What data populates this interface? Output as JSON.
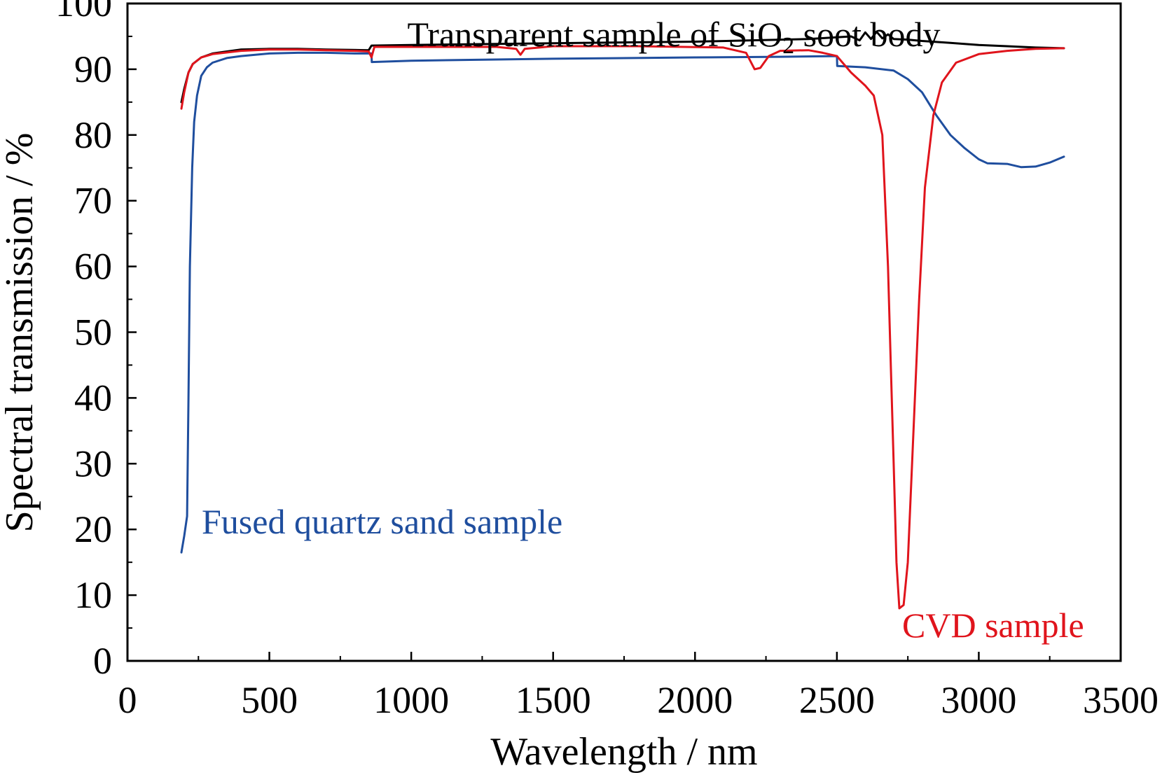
{
  "chart_data": {
    "type": "line",
    "xlabel": "Wavelength / nm",
    "ylabel": "Spectral transmission / %",
    "xlim": [
      0,
      3500
    ],
    "ylim": [
      0,
      100
    ],
    "x_ticks": [
      0,
      500,
      1000,
      1500,
      2000,
      2500,
      3000,
      3500
    ],
    "x_tick_labels": [
      "0",
      "500",
      "1000",
      "1500",
      "2000",
      "2500",
      "3000",
      "3500"
    ],
    "y_ticks": [
      0,
      10,
      20,
      30,
      40,
      50,
      60,
      70,
      80,
      90,
      100
    ],
    "y_tick_labels": [
      "0",
      "10",
      "20",
      "30",
      "40",
      "50",
      "60",
      "70",
      "80",
      "90",
      "100"
    ],
    "grid": false,
    "annotations": {
      "transparent": {
        "text": "Transparent sample of SiO",
        "subscript": "2",
        "suffix": " soot body",
        "color": "#000000"
      },
      "fused": {
        "text": "Fused quartz sand sample",
        "color": "#1f4e9e"
      },
      "cvd": {
        "text": "CVD sample",
        "color": "#e0141c"
      }
    },
    "series": [
      {
        "key": "transparent",
        "color": "#000000",
        "points": [
          [
            190,
            85
          ],
          [
            200,
            87
          ],
          [
            215,
            89.5
          ],
          [
            230,
            90.8
          ],
          [
            260,
            91.8
          ],
          [
            300,
            92.4
          ],
          [
            400,
            93
          ],
          [
            500,
            93.1
          ],
          [
            600,
            93.1
          ],
          [
            700,
            93
          ],
          [
            850,
            92.9
          ],
          [
            860,
            93.6
          ],
          [
            1000,
            93.7
          ],
          [
            1200,
            93.8
          ],
          [
            1400,
            93.9
          ],
          [
            1600,
            94
          ],
          [
            1800,
            94.1
          ],
          [
            2000,
            94.2
          ],
          [
            2200,
            94.4
          ],
          [
            2400,
            94.6
          ],
          [
            2550,
            95
          ],
          [
            2580,
            94.4
          ],
          [
            2600,
            95.6
          ],
          [
            2620,
            94.6
          ],
          [
            2640,
            95.7
          ],
          [
            2660,
            94.7
          ],
          [
            2680,
            95.3
          ],
          [
            2700,
            94.6
          ],
          [
            2750,
            94.5
          ],
          [
            2800,
            94.3
          ],
          [
            2900,
            94
          ],
          [
            3000,
            93.7
          ],
          [
            3100,
            93.5
          ],
          [
            3200,
            93.3
          ],
          [
            3300,
            93.2
          ]
        ]
      },
      {
        "key": "fused",
        "color": "#1f4e9e",
        "points": [
          [
            190,
            16.5
          ],
          [
            200,
            19
          ],
          [
            210,
            22
          ],
          [
            215,
            40
          ],
          [
            220,
            60
          ],
          [
            228,
            75
          ],
          [
            235,
            82
          ],
          [
            245,
            86
          ],
          [
            260,
            89
          ],
          [
            280,
            90.3
          ],
          [
            300,
            91
          ],
          [
            350,
            91.7
          ],
          [
            400,
            92
          ],
          [
            500,
            92.4
          ],
          [
            600,
            92.5
          ],
          [
            700,
            92.5
          ],
          [
            800,
            92.4
          ],
          [
            860,
            92.4
          ],
          [
            861,
            91.1
          ],
          [
            1000,
            91.3
          ],
          [
            1500,
            91.6
          ],
          [
            2000,
            91.8
          ],
          [
            2300,
            91.9
          ],
          [
            2500,
            92
          ],
          [
            2501,
            90.5
          ],
          [
            2600,
            90.3
          ],
          [
            2700,
            89.8
          ],
          [
            2750,
            88.5
          ],
          [
            2800,
            86.5
          ],
          [
            2850,
            83
          ],
          [
            2900,
            80
          ],
          [
            2950,
            78
          ],
          [
            3000,
            76.3
          ],
          [
            3030,
            75.7
          ],
          [
            3100,
            75.6
          ],
          [
            3150,
            75.1
          ],
          [
            3200,
            75.2
          ],
          [
            3250,
            75.8
          ],
          [
            3300,
            76.7
          ]
        ]
      },
      {
        "key": "cvd",
        "color": "#e0141c",
        "points": [
          [
            190,
            84
          ],
          [
            200,
            86.5
          ],
          [
            215,
            89.5
          ],
          [
            230,
            90.8
          ],
          [
            260,
            91.8
          ],
          [
            300,
            92.3
          ],
          [
            400,
            92.8
          ],
          [
            500,
            93
          ],
          [
            600,
            93
          ],
          [
            700,
            92.9
          ],
          [
            800,
            92.8
          ],
          [
            850,
            92.7
          ],
          [
            860,
            91.8
          ],
          [
            870,
            93.4
          ],
          [
            1000,
            93.4
          ],
          [
            1300,
            93.4
          ],
          [
            1370,
            93.1
          ],
          [
            1385,
            92.2
          ],
          [
            1400,
            93.1
          ],
          [
            1500,
            93.5
          ],
          [
            1800,
            93.5
          ],
          [
            2100,
            93.3
          ],
          [
            2180,
            92.5
          ],
          [
            2210,
            90
          ],
          [
            2230,
            90.2
          ],
          [
            2260,
            92
          ],
          [
            2300,
            92.8
          ],
          [
            2400,
            92.9
          ],
          [
            2450,
            92.5
          ],
          [
            2500,
            92
          ],
          [
            2550,
            89.5
          ],
          [
            2600,
            87.5
          ],
          [
            2630,
            86
          ],
          [
            2660,
            80
          ],
          [
            2680,
            60
          ],
          [
            2690,
            45
          ],
          [
            2700,
            30
          ],
          [
            2710,
            15
          ],
          [
            2720,
            8
          ],
          [
            2735,
            8.5
          ],
          [
            2750,
            15
          ],
          [
            2770,
            35
          ],
          [
            2790,
            55
          ],
          [
            2810,
            72
          ],
          [
            2840,
            83
          ],
          [
            2870,
            88
          ],
          [
            2920,
            91
          ],
          [
            3000,
            92.3
          ],
          [
            3100,
            92.8
          ],
          [
            3200,
            93.1
          ],
          [
            3300,
            93.2
          ]
        ]
      }
    ]
  }
}
